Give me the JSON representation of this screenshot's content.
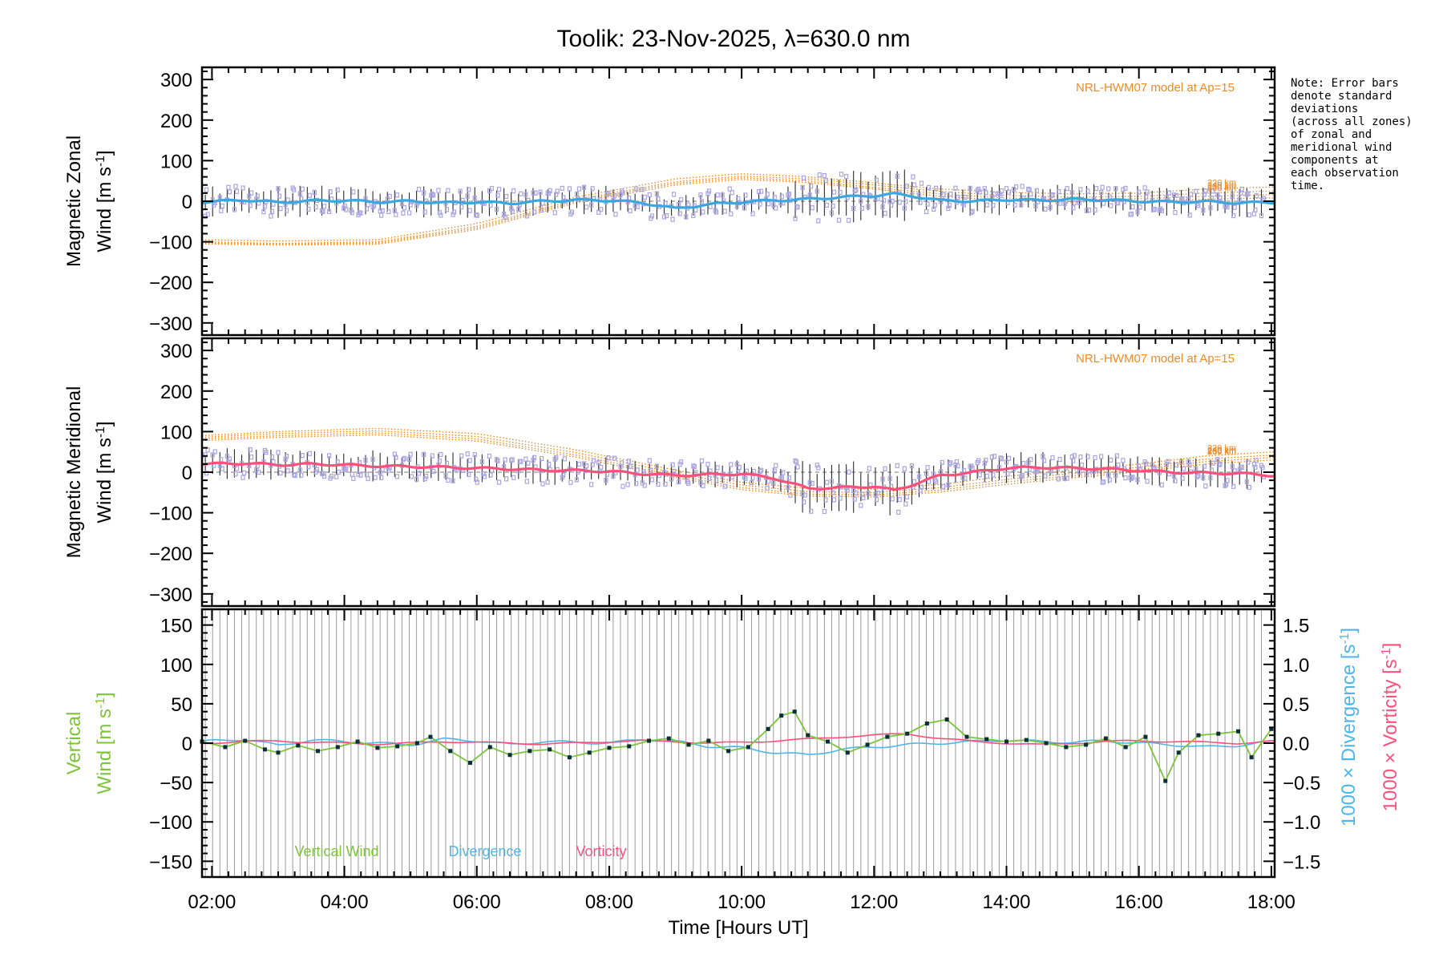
{
  "title": "Toolik: 23-Nov-2025, λ=630.0 nm",
  "note_lines": [
    "Note: Error bars",
    "denote standard",
    "deviations",
    "(across all zones)",
    "of zonal and",
    "meridional wind",
    "components at",
    "each observation",
    "time."
  ],
  "colors": {
    "axis": "#000000",
    "model": "#f08a24",
    "zonal_line": "#3aa7e0",
    "meridional_line": "#ff4f7b",
    "error_bar": "#2a2a2a",
    "scatter": "#a9a5e0",
    "vertical_line": "#7cc43a",
    "vertical_points": "#0c2d3a",
    "divergence": "#4db6e8",
    "vorticity": "#ff4f7b",
    "grid_lines": "#9a9a9a"
  },
  "x_axis": {
    "label": "Time [Hours UT]",
    "tick_labels": [
      "02:00",
      "04:00",
      "06:00",
      "08:00",
      "10:00",
      "12:00",
      "14:00",
      "16:00",
      "18:00"
    ],
    "tick_values": [
      2,
      4,
      6,
      8,
      10,
      12,
      14,
      16,
      18
    ],
    "xlim": [
      1.85,
      18.05
    ]
  },
  "chart_data": [
    {
      "type": "line",
      "panel": "zonal",
      "ylabel_line1": "Magnetic Zonal",
      "ylabel_line2": "Wind [m s",
      "ylabel_sup": "-1",
      "ylabel_close": "]",
      "ylim": [
        -330,
        330
      ],
      "yticks": [
        300,
        200,
        100,
        0,
        -100,
        -200,
        -300
      ],
      "ytick_labels": [
        "300",
        "200",
        "100",
        "0",
        "−100",
        "−200",
        "−300"
      ],
      "model_label": "NRL-HWM07 model at Ap=15",
      "model_level_labels": [
        "220 km",
        "240 km",
        "250 km",
        "260 km"
      ],
      "model_curves": [
        {
          "name": "220 km",
          "x": [
            1.85,
            3,
            4.5,
            6,
            7.5,
            9,
            10,
            11,
            12,
            13,
            14,
            15,
            16,
            17,
            18
          ],
          "y": [
            -95,
            -98,
            -95,
            -55,
            10,
            55,
            68,
            60,
            45,
            30,
            22,
            18,
            20,
            30,
            35
          ]
        },
        {
          "name": "240 km",
          "x": [
            1.85,
            3,
            4.5,
            6,
            7.5,
            9,
            10,
            11,
            12,
            13,
            14,
            15,
            16,
            17,
            18
          ],
          "y": [
            -100,
            -104,
            -100,
            -62,
            4,
            48,
            62,
            55,
            40,
            24,
            14,
            10,
            12,
            20,
            25
          ]
        },
        {
          "name": "250 km",
          "x": [
            1.85,
            3,
            4.5,
            6,
            7.5,
            9,
            10,
            11,
            12,
            13,
            14,
            15,
            16,
            17,
            18
          ],
          "y": [
            -103,
            -106,
            -103,
            -66,
            0,
            44,
            58,
            50,
            34,
            18,
            8,
            4,
            6,
            12,
            16
          ]
        },
        {
          "name": "260 km",
          "x": [
            1.85,
            3,
            4.5,
            6,
            7.5,
            9,
            10,
            11,
            12,
            13,
            14,
            15,
            16,
            17,
            18
          ],
          "y": [
            -105,
            -108,
            -106,
            -70,
            -4,
            40,
            54,
            46,
            30,
            12,
            2,
            -2,
            0,
            5,
            8
          ]
        }
      ],
      "series": [
        {
          "name": "Zonal wind",
          "x": [
            1.85,
            2.5,
            3,
            3.5,
            4,
            4.5,
            5,
            5.5,
            6,
            6.5,
            7,
            7.5,
            8,
            8.5,
            9,
            9.5,
            10,
            10.5,
            11,
            11.5,
            12,
            12.3,
            12.6,
            13,
            13.5,
            14,
            14.5,
            15,
            15.5,
            16,
            16.5,
            17,
            17.5,
            18
          ],
          "y": [
            -2,
            3,
            -3,
            1,
            2,
            -2,
            0,
            -4,
            -2,
            -5,
            0,
            3,
            2,
            -4,
            -18,
            -8,
            -2,
            2,
            5,
            10,
            14,
            18,
            12,
            2,
            0,
            4,
            2,
            5,
            3,
            0,
            -2,
            -1,
            -4,
            -3
          ]
        }
      ]
    },
    {
      "type": "line",
      "panel": "meridional",
      "ylabel_line1": "Magnetic Meridional",
      "ylabel_line2": "Wind [m s",
      "ylabel_sup": "-1",
      "ylabel_close": "]",
      "ylim": [
        -330,
        330
      ],
      "yticks": [
        300,
        200,
        100,
        0,
        -100,
        -200,
        -300
      ],
      "ytick_labels": [
        "300",
        "200",
        "100",
        "0",
        "−100",
        "−200",
        "−300"
      ],
      "model_label": "NRL-HWM07 model at Ap=15",
      "model_level_labels": [
        "220 km",
        "240 km",
        "250 km",
        "260 km"
      ],
      "model_curves": [
        {
          "name": "220 km",
          "x": [
            1.85,
            3,
            4.5,
            6,
            7.5,
            9,
            10,
            11,
            12,
            13,
            14,
            15,
            16,
            17,
            18
          ],
          "y": [
            90,
            100,
            108,
            95,
            55,
            5,
            -25,
            -40,
            -42,
            -30,
            -10,
            5,
            20,
            40,
            50
          ]
        },
        {
          "name": "240 km",
          "x": [
            1.85,
            3,
            4.5,
            6,
            7.5,
            9,
            10,
            11,
            12,
            13,
            14,
            15,
            16,
            17,
            18
          ],
          "y": [
            86,
            95,
            102,
            88,
            48,
            -2,
            -32,
            -48,
            -50,
            -38,
            -18,
            -3,
            12,
            32,
            42
          ]
        },
        {
          "name": "250 km",
          "x": [
            1.85,
            3,
            4.5,
            6,
            7.5,
            9,
            10,
            11,
            12,
            13,
            14,
            15,
            16,
            17,
            18
          ],
          "y": [
            82,
            90,
            97,
            82,
            42,
            -8,
            -38,
            -54,
            -56,
            -44,
            -24,
            -9,
            6,
            26,
            36
          ]
        },
        {
          "name": "260 km",
          "x": [
            1.85,
            3,
            4.5,
            6,
            7.5,
            9,
            10,
            11,
            12,
            13,
            14,
            15,
            16,
            17,
            18
          ],
          "y": [
            78,
            86,
            92,
            77,
            37,
            -13,
            -43,
            -59,
            -61,
            -49,
            -30,
            -14,
            1,
            20,
            30
          ]
        }
      ],
      "series": [
        {
          "name": "Meridional wind",
          "x": [
            1.85,
            2.5,
            3,
            3.5,
            4,
            4.5,
            5,
            5.5,
            6,
            6.5,
            7,
            7.5,
            8,
            8.5,
            9,
            9.5,
            10,
            10.5,
            11,
            11.5,
            12,
            12.3,
            12.6,
            13,
            13.5,
            14,
            14.5,
            15,
            15.5,
            16,
            16.5,
            17,
            17.5,
            18
          ],
          "y": [
            20,
            22,
            18,
            20,
            18,
            15,
            14,
            12,
            10,
            8,
            5,
            4,
            2,
            -4,
            -8,
            -6,
            -4,
            -15,
            -40,
            -38,
            -35,
            -45,
            -30,
            -8,
            0,
            10,
            12,
            10,
            8,
            4,
            0,
            -2,
            -3,
            -8
          ]
        }
      ]
    },
    {
      "type": "line",
      "panel": "vertical",
      "ylabel_left_line1": "Vertical",
      "ylabel_left_line2": "Wind [m s",
      "ylabel_left_sup": "-1",
      "ylabel_left_close": "]",
      "ylabel_div": "1000 × Divergence [s",
      "ylabel_div_sup": "-1",
      "ylabel_div_close": "]",
      "ylabel_vort": "1000 × Vorticity [s",
      "ylabel_vort_sup": "-1",
      "ylabel_vort_close": "]",
      "ylim": [
        -170,
        170
      ],
      "yticks": [
        150,
        100,
        50,
        0,
        -50,
        -100,
        -150
      ],
      "ytick_labels": [
        "150",
        "100",
        "50",
        "0",
        "−50",
        "−100",
        "−150"
      ],
      "ylim_right": [
        -1.7,
        1.7
      ],
      "yticks_right": [
        1.5,
        1.0,
        0.5,
        0.0,
        -0.5,
        -1.0,
        -1.5
      ],
      "ytick_labels_right": [
        "1.5",
        "1.0",
        "0.5",
        "0.0",
        "−0.5",
        "−1.0",
        "−1.5"
      ],
      "legend": [
        "Vertical Wind",
        "Divergence",
        "Vorticity"
      ],
      "series": [
        {
          "name": "Vertical Wind",
          "x": [
            1.85,
            2.2,
            2.5,
            2.8,
            3.0,
            3.3,
            3.6,
            3.9,
            4.2,
            4.5,
            4.8,
            5.1,
            5.3,
            5.6,
            5.9,
            6.2,
            6.5,
            6.8,
            7.1,
            7.4,
            7.7,
            8.0,
            8.3,
            8.6,
            8.9,
            9.2,
            9.5,
            9.8,
            10.1,
            10.4,
            10.6,
            10.8,
            11.0,
            11.3,
            11.6,
            11.9,
            12.2,
            12.5,
            12.8,
            13.1,
            13.4,
            13.7,
            14.0,
            14.3,
            14.6,
            14.9,
            15.2,
            15.5,
            15.8,
            16.1,
            16.4,
            16.6,
            16.9,
            17.2,
            17.5,
            17.7,
            18.0
          ],
          "y": [
            2,
            -5,
            3,
            -8,
            -12,
            -3,
            -10,
            -5,
            2,
            -6,
            -4,
            0,
            8,
            -10,
            -25,
            -5,
            -15,
            -10,
            -8,
            -18,
            -12,
            -6,
            -4,
            3,
            6,
            -2,
            3,
            -10,
            -5,
            18,
            35,
            40,
            10,
            2,
            -12,
            -2,
            8,
            12,
            25,
            30,
            8,
            5,
            2,
            4,
            0,
            -5,
            -2,
            6,
            -5,
            8,
            -48,
            -12,
            10,
            12,
            15,
            -18,
            18
          ]
        },
        {
          "name": "Divergence",
          "x": [
            1.85,
            2.5,
            3,
            3.5,
            4,
            4.5,
            5,
            5.5,
            6,
            6.5,
            7,
            7.5,
            8,
            8.5,
            9,
            9.5,
            10,
            10.5,
            11,
            11.5,
            12,
            12.5,
            13,
            13.5,
            14,
            14.5,
            15,
            15.5,
            16,
            16.5,
            17,
            17.5,
            18
          ],
          "y": [
            0.02,
            0.05,
            -0.03,
            0.04,
            0.02,
            0.0,
            -0.02,
            0.05,
            0.03,
            -0.02,
            0.02,
            0.01,
            0.0,
            0.05,
            0.02,
            -0.04,
            -0.06,
            -0.12,
            -0.15,
            -0.08,
            -0.05,
            -0.02,
            0.0,
            0.02,
            0.04,
            0.02,
            0.01,
            0.03,
            0.0,
            -0.02,
            -0.05,
            -0.03,
            0.02
          ]
        },
        {
          "name": "Vorticity",
          "x": [
            1.85,
            2.5,
            3,
            3.5,
            4,
            4.5,
            5,
            5.5,
            6,
            6.5,
            7,
            7.5,
            8,
            8.5,
            9,
            9.5,
            10,
            10.5,
            11,
            11.5,
            12,
            12.5,
            13,
            13.5,
            14,
            14.5,
            15,
            15.5,
            16,
            16.5,
            17,
            17.5,
            18
          ],
          "y": [
            0.0,
            0.02,
            0.03,
            0.01,
            0.0,
            -0.01,
            0.0,
            0.02,
            0.01,
            0.0,
            -0.01,
            0.0,
            0.02,
            0.03,
            0.02,
            0.0,
            0.01,
            0.03,
            0.05,
            0.08,
            0.1,
            0.12,
            0.06,
            0.02,
            0.0,
            -0.02,
            0.0,
            0.02,
            0.03,
            0.02,
            0.01,
            0.0,
            0.02
          ]
        }
      ]
    }
  ]
}
